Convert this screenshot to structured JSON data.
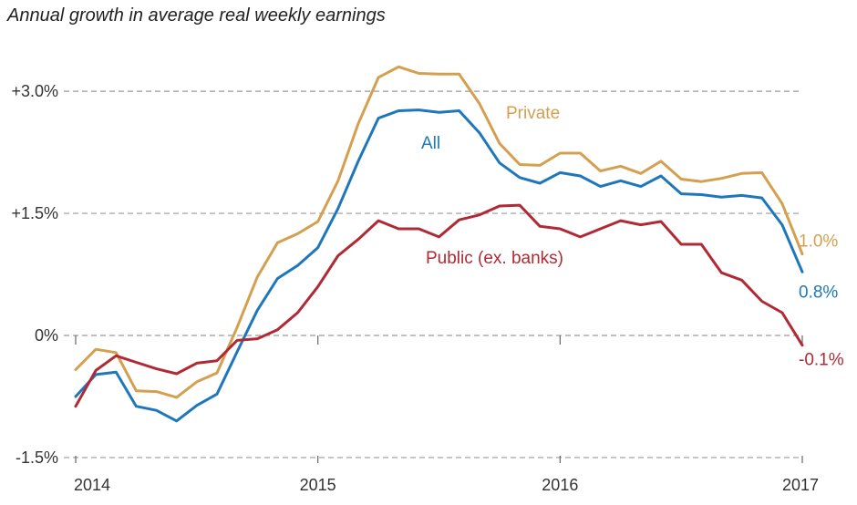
{
  "chart_data": {
    "type": "line",
    "title": "Annual growth in average real weekly earnings",
    "y_unit": "%",
    "ylim": [
      -1.5,
      3.3
    ],
    "y_ticks": [
      {
        "value": 3.0,
        "label": "+3.0%"
      },
      {
        "value": 1.5,
        "label": "+1.5%"
      },
      {
        "value": 0.0,
        "label": "0%"
      },
      {
        "value": -1.5,
        "label": "-1.5%"
      }
    ],
    "x_ticks": [
      {
        "value": 0,
        "label": "2014"
      },
      {
        "value": 12,
        "label": "2015"
      },
      {
        "value": 24,
        "label": "2016"
      },
      {
        "value": 36,
        "label": "2017"
      }
    ],
    "x_description": "months from January 2014 to January 2017",
    "grid": "horizontal dashed",
    "series": [
      {
        "name": "Private",
        "color": "#d4a050",
        "end_label": "1.0%",
        "values": [
          -0.42,
          -0.17,
          -0.21,
          -0.68,
          -0.69,
          -0.76,
          -0.57,
          -0.46,
          0.1,
          0.72,
          1.14,
          1.25,
          1.4,
          1.9,
          2.6,
          3.17,
          3.3,
          3.22,
          3.21,
          3.21,
          2.85,
          2.36,
          2.1,
          2.09,
          2.24,
          2.24,
          2.02,
          2.08,
          1.99,
          2.14,
          1.92,
          1.89,
          1.93,
          1.99,
          2.0,
          1.62,
          1.0
        ]
      },
      {
        "name": "All",
        "color": "#1f77bb",
        "end_label": "0.8%",
        "values": [
          -0.75,
          -0.48,
          -0.45,
          -0.87,
          -0.92,
          -1.05,
          -0.86,
          -0.72,
          -0.2,
          0.31,
          0.7,
          0.86,
          1.08,
          1.56,
          2.14,
          2.67,
          2.76,
          2.77,
          2.74,
          2.76,
          2.49,
          2.12,
          1.94,
          1.87,
          2.0,
          1.96,
          1.83,
          1.9,
          1.83,
          1.96,
          1.74,
          1.73,
          1.7,
          1.72,
          1.69,
          1.36,
          0.78
        ]
      },
      {
        "name": "Public (ex. banks)",
        "color": "#b02a35",
        "end_label": "-0.1%",
        "values": [
          -0.87,
          -0.43,
          -0.25,
          -0.33,
          -0.41,
          -0.47,
          -0.34,
          -0.31,
          -0.06,
          -0.04,
          0.07,
          0.28,
          0.6,
          0.98,
          1.18,
          1.41,
          1.31,
          1.31,
          1.21,
          1.42,
          1.48,
          1.59,
          1.6,
          1.34,
          1.31,
          1.21,
          1.31,
          1.41,
          1.36,
          1.4,
          1.12,
          1.12,
          0.77,
          0.68,
          0.42,
          0.28,
          -0.12
        ]
      }
    ],
    "annotations": [
      {
        "series": "Private",
        "text": "Private"
      },
      {
        "series": "All",
        "text": "All"
      },
      {
        "series": "Public (ex. banks)",
        "text": "Public (ex. banks)"
      }
    ]
  }
}
